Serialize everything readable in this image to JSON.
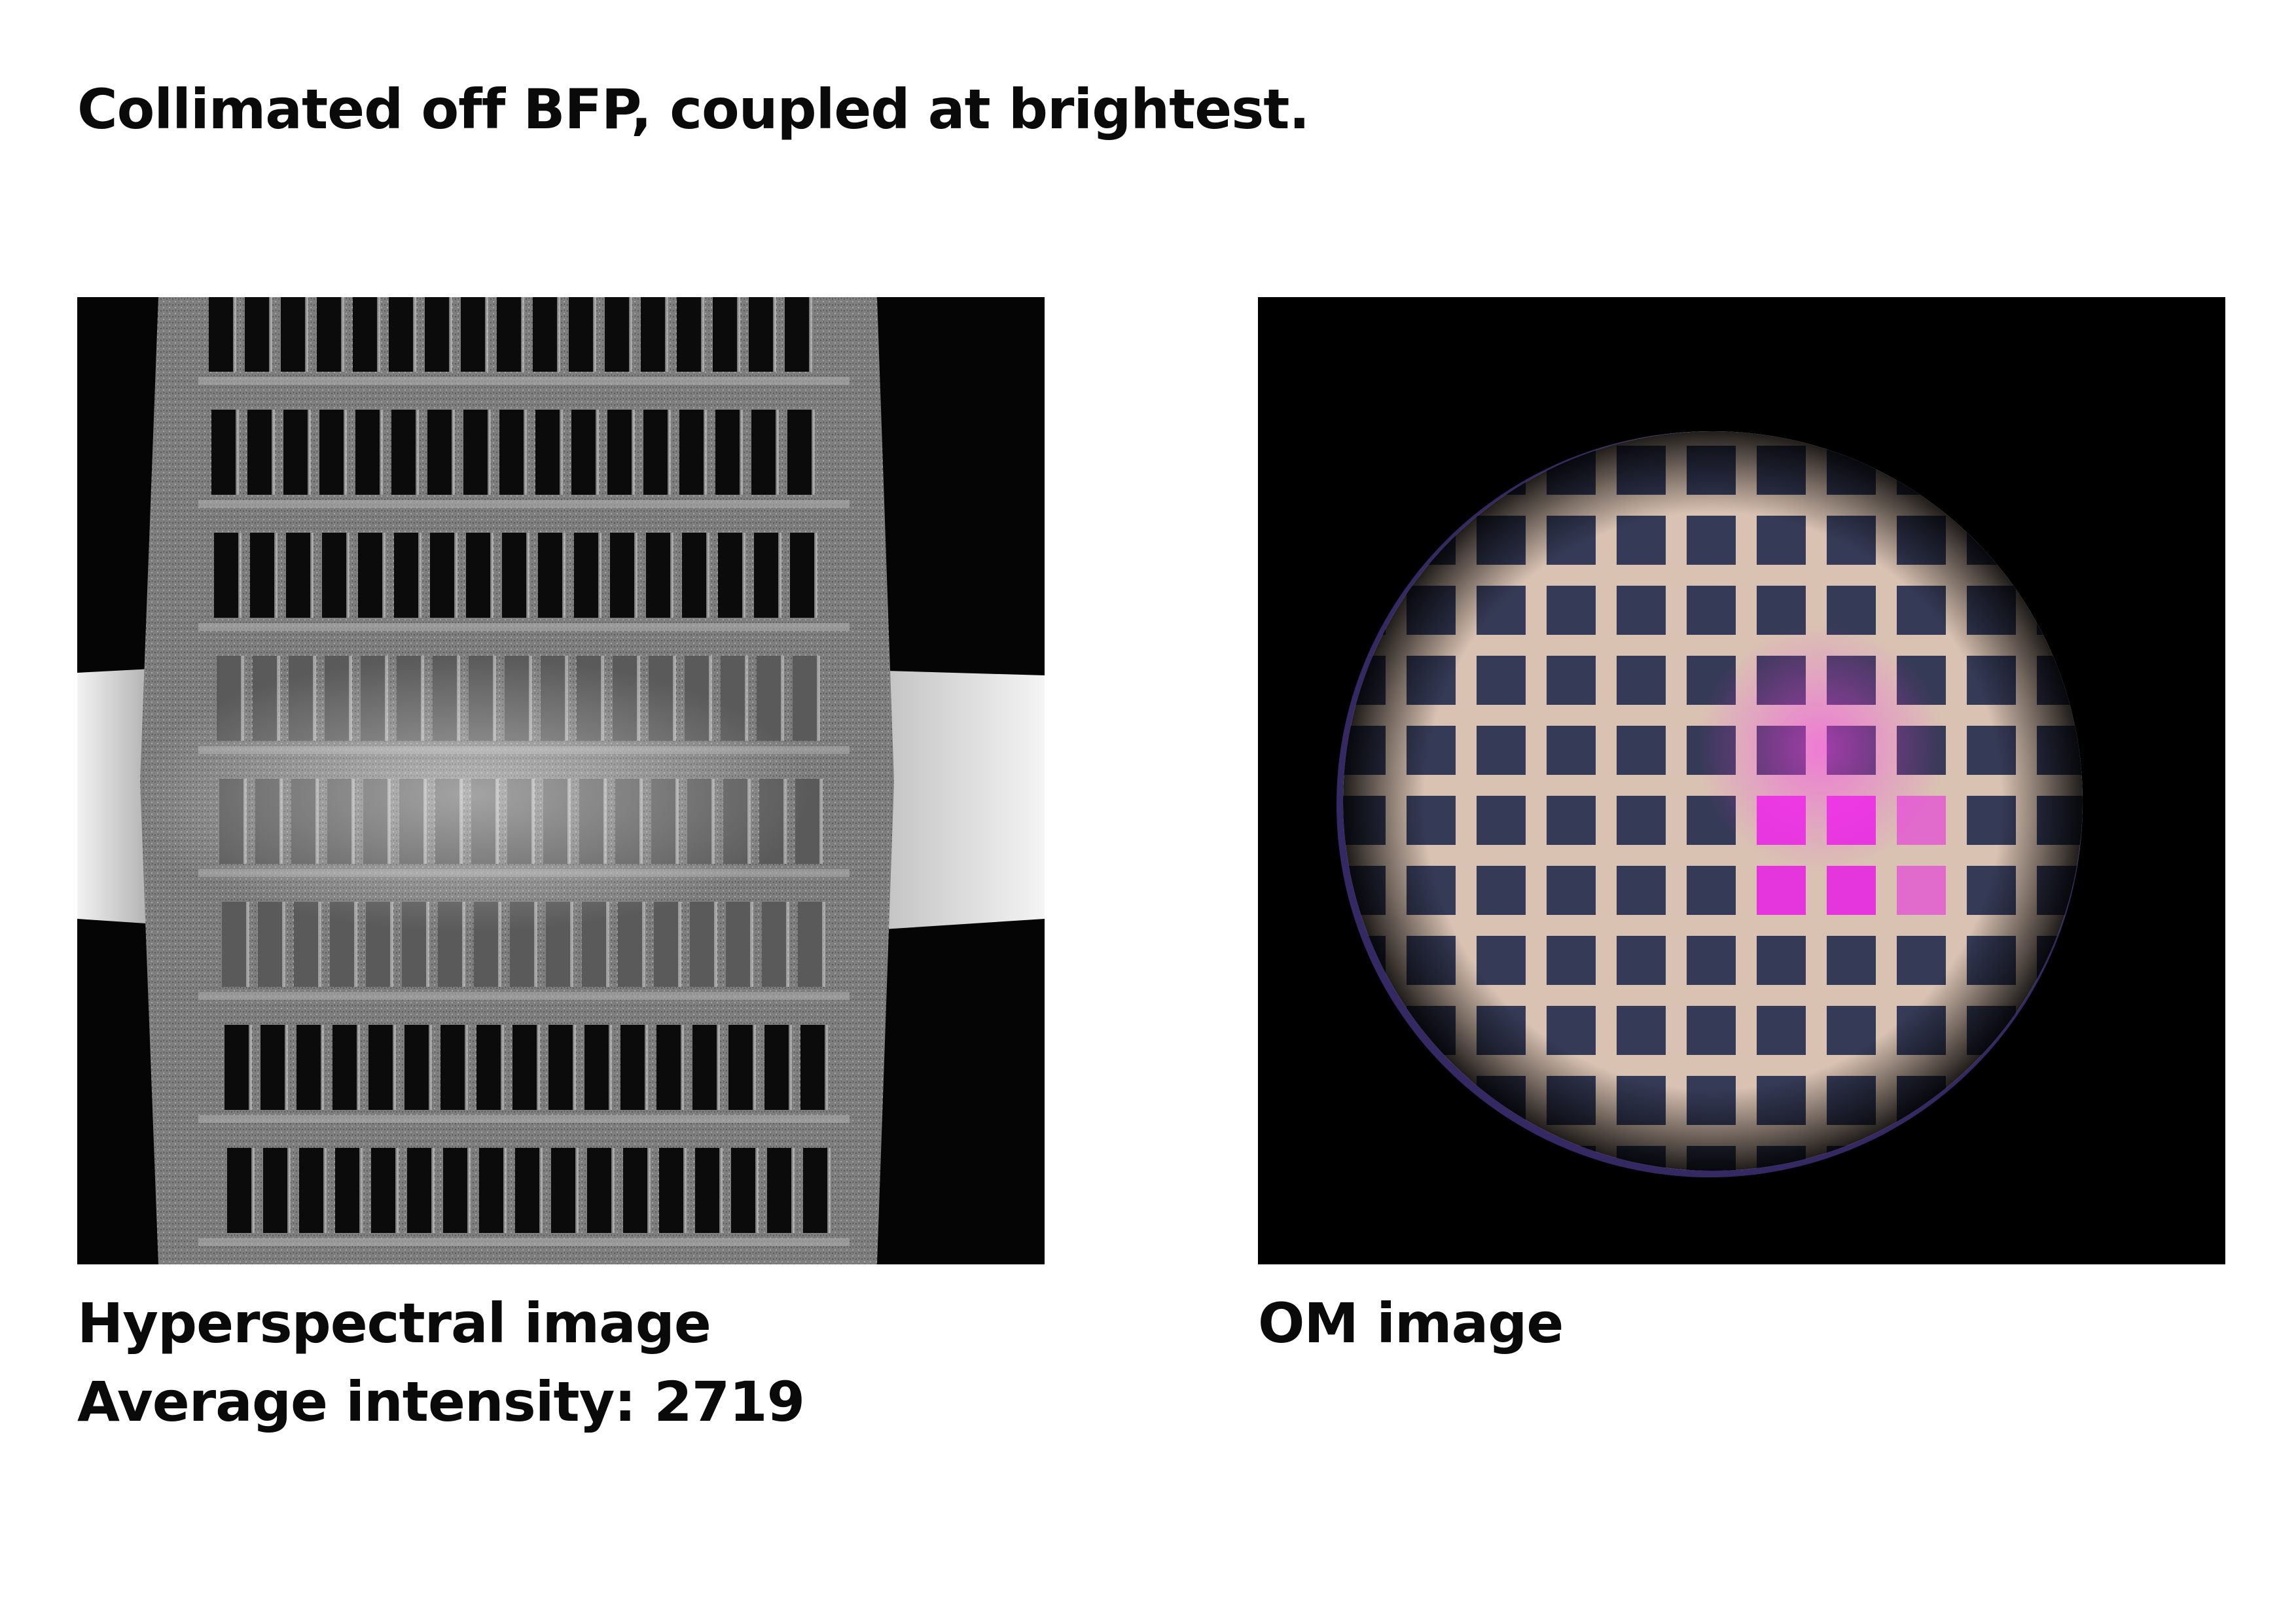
{
  "title": "Collimated off BFP, coupled at brightest.",
  "left_panel": {
    "caption_line1": "Hyperspectral image",
    "caption_line2": "Average intensity: 2719"
  },
  "right_panel": {
    "caption": "OM image"
  },
  "colors": {
    "page_background": "#ffffff",
    "text": "#0a0a0a",
    "hyperspectral_frame": "#8a8a8a",
    "hyperspectral_window": "#0b0b0b",
    "om_grid": "#d9c2b2",
    "om_window": "#353a56",
    "om_emission": "#e62ee0"
  }
}
